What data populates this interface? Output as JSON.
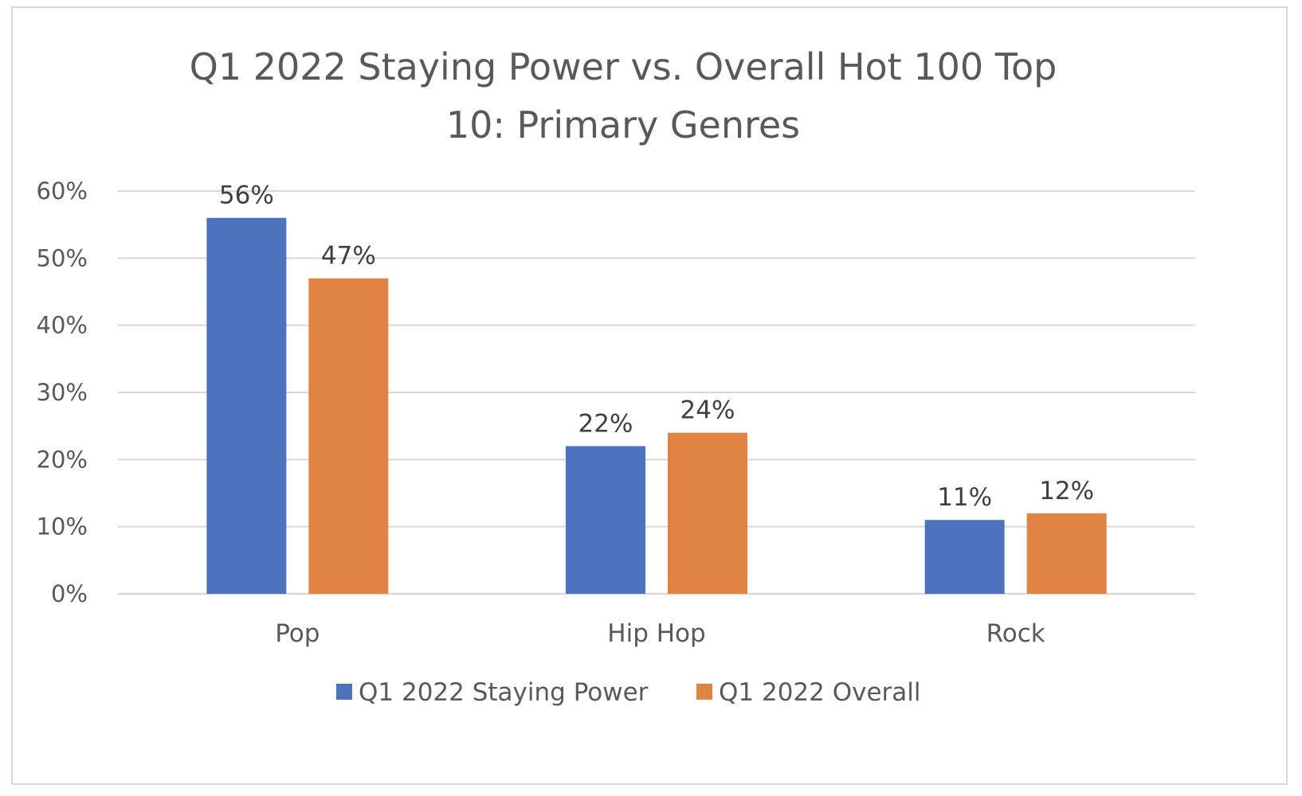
{
  "chart_data": {
    "type": "bar",
    "title": "Q1 2022 Staying Power vs. Overall Hot 100 Top 10: Primary Genres",
    "title_lines": [
      "Q1 2022 Staying Power vs. Overall Hot 100 Top",
      "10: Primary Genres"
    ],
    "categories": [
      "Pop",
      "Hip Hop",
      "Rock"
    ],
    "series": [
      {
        "name": "Q1 2022 Staying Power",
        "values": [
          56,
          22,
          11
        ],
        "labels": [
          "56%",
          "22%",
          "11%"
        ],
        "color": "#4e73be"
      },
      {
        "name": "Q1 2022 Overall",
        "values": [
          47,
          24,
          12
        ],
        "labels": [
          "47%",
          "24%",
          "12%"
        ],
        "color": "#e08444"
      }
    ],
    "ylim": [
      0,
      60
    ],
    "yticks": [
      0,
      10,
      20,
      30,
      40,
      50,
      60
    ],
    "ytick_labels": [
      "0%",
      "10%",
      "20%",
      "30%",
      "40%",
      "50%",
      "60%"
    ],
    "xlabel": "",
    "ylabel": "",
    "grid": true,
    "legend_position": "bottom"
  }
}
